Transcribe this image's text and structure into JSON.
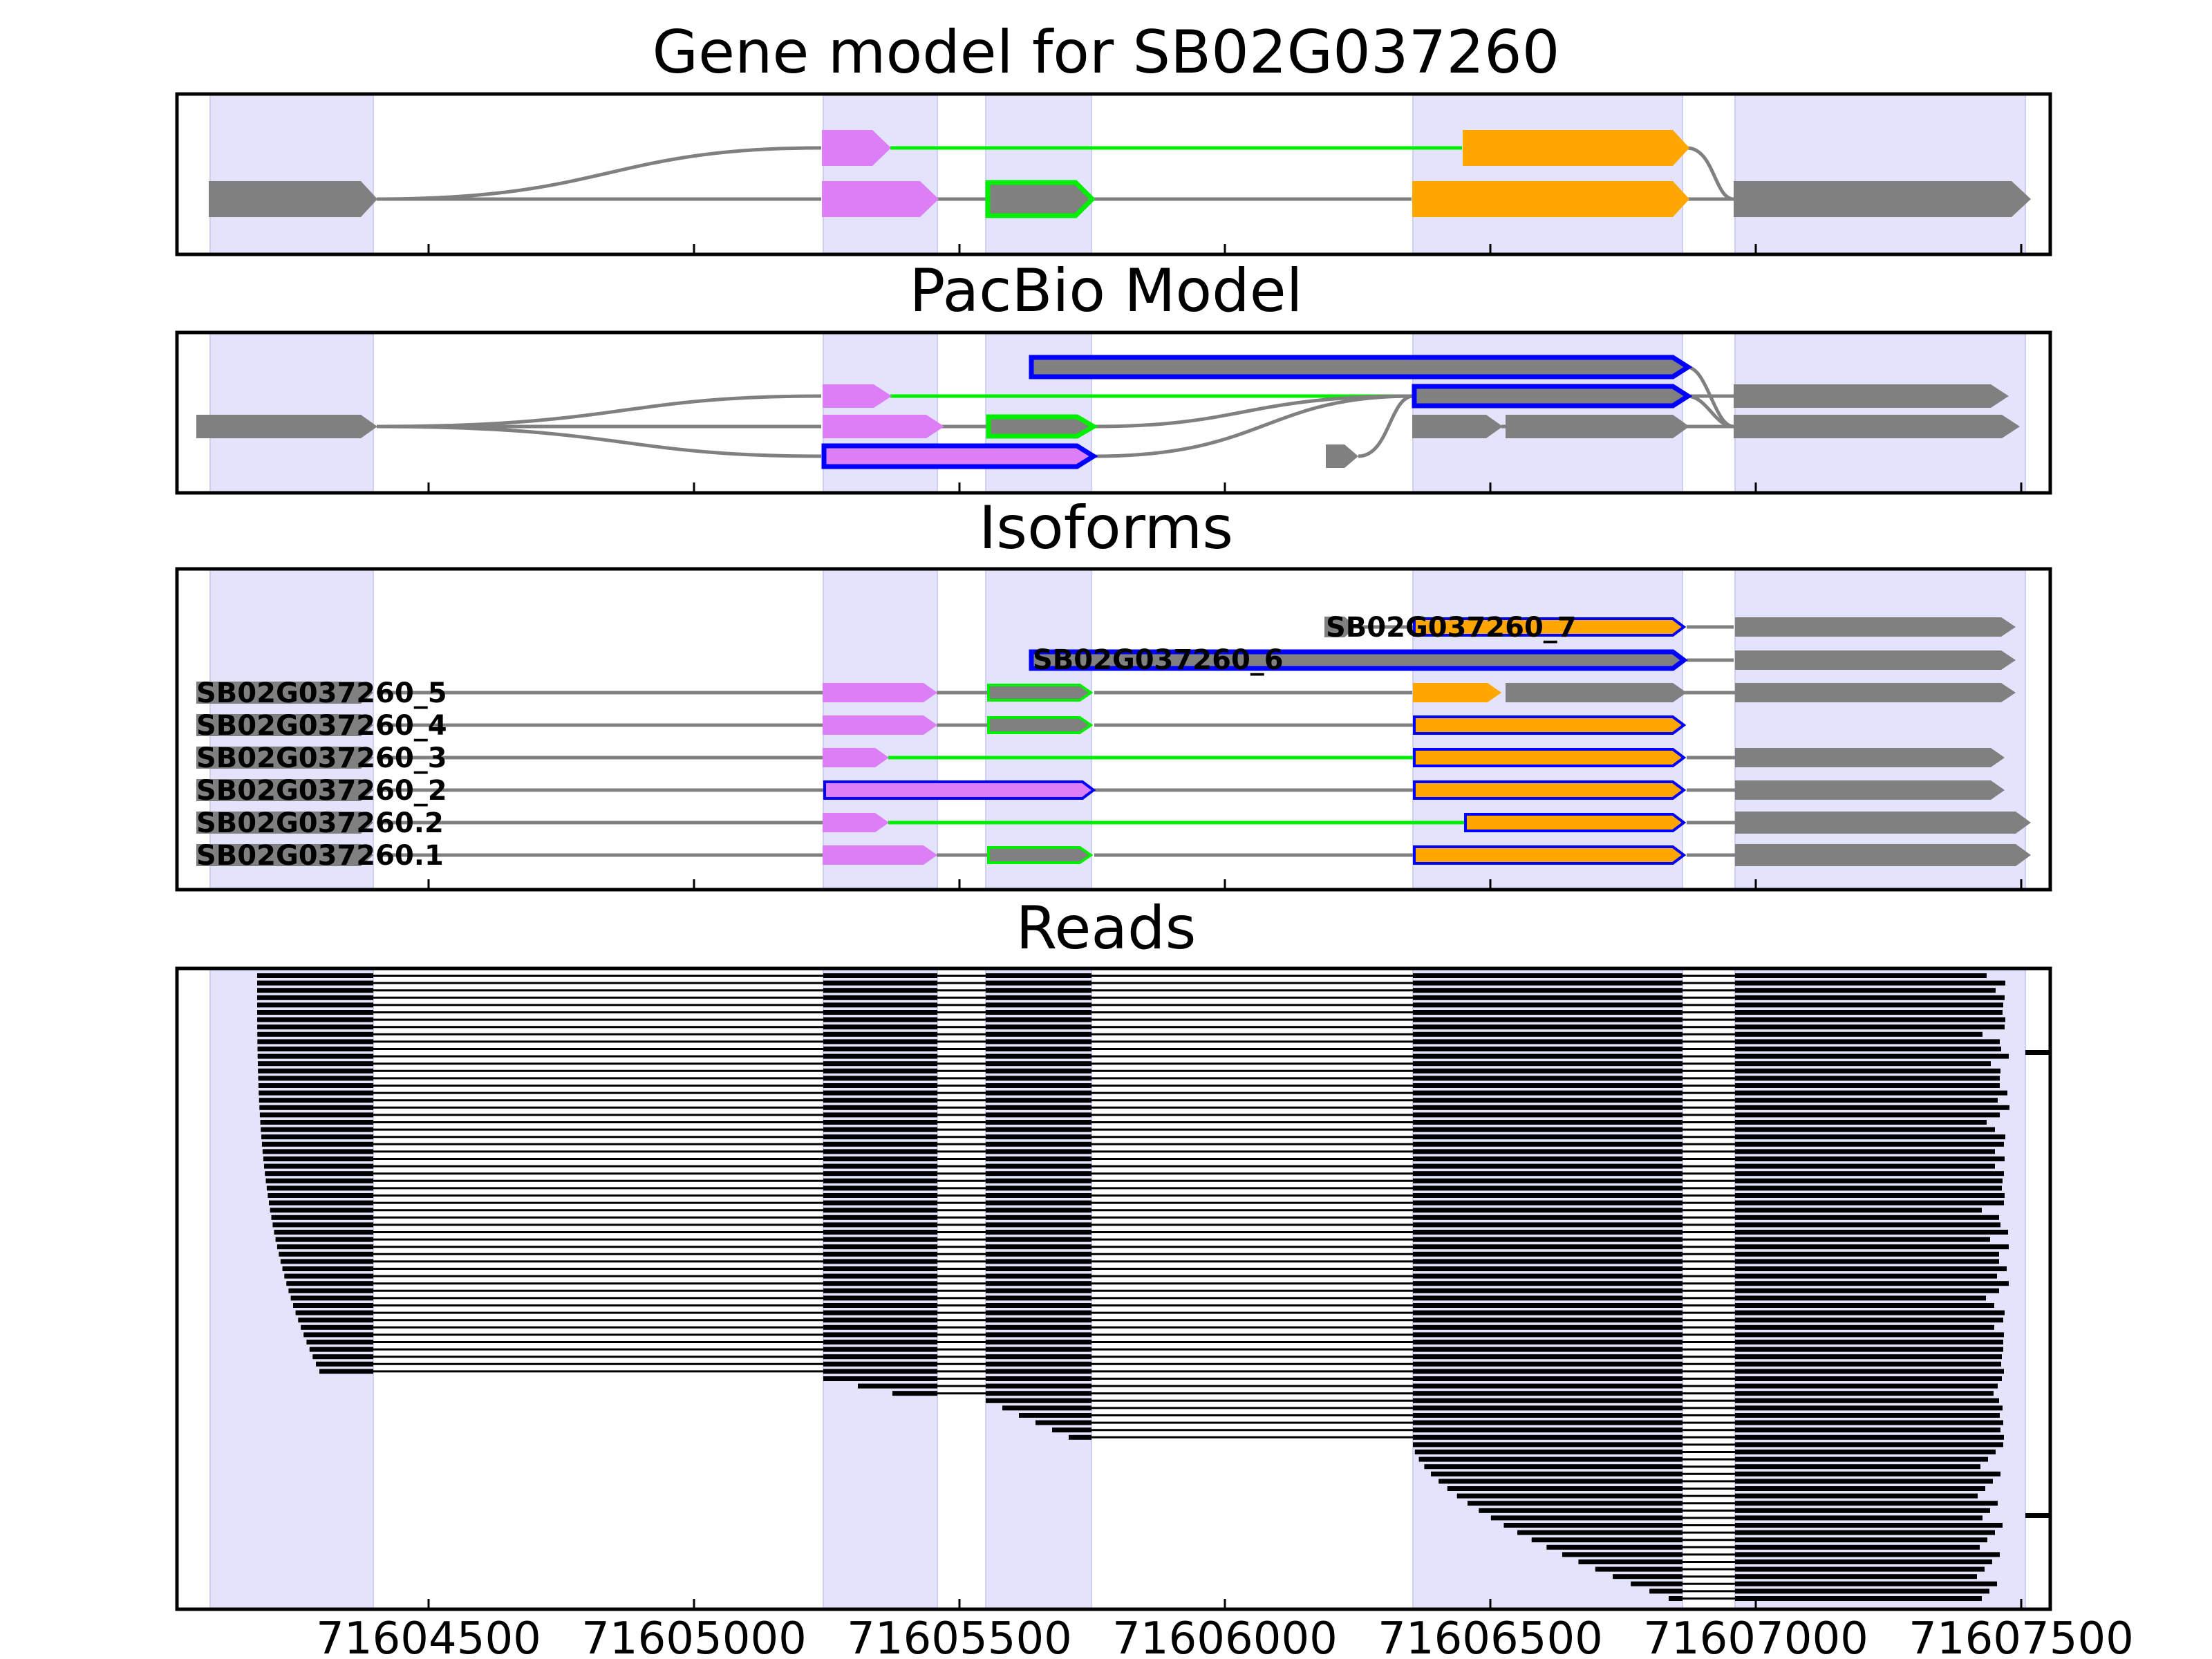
{
  "figure": {
    "colors": {
      "shade": "#e3e3fc",
      "exon": "#808080",
      "violet": "#dc7ef6",
      "orange": "#ffa600",
      "green": "#00ee00",
      "blue": "#0000ff",
      "intron": "#808080",
      "read": "#000000"
    },
    "panels": [
      {
        "title": "Gene model for SB02G037260"
      },
      {
        "title": "PacBio Model"
      },
      {
        "title": "Isoforms"
      },
      {
        "title": "Reads"
      }
    ],
    "x_ticks": [
      "71604500",
      "71605000",
      "71605500",
      "71606000",
      "71606500",
      "71607000",
      "71607500"
    ],
    "isoform_labels": [
      "SB02G037260_7",
      "SB02G037260_6",
      "SB02G037260_5",
      "SB02G037260_4",
      "SB02G037260_3",
      "SB02G037260_2",
      "SB02G037260.2",
      "SB02G037260.1"
    ]
  }
}
